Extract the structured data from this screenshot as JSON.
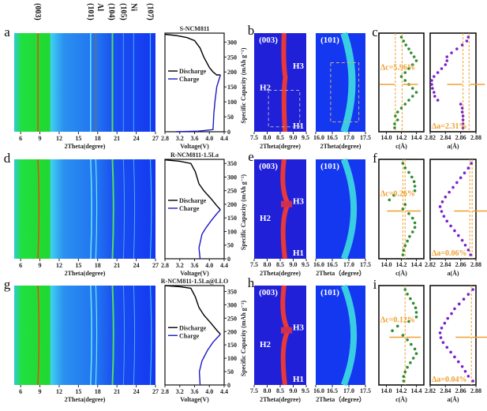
{
  "chart_data": {
    "type": "heatmap",
    "colors": {
      "discharge": "#000000",
      "charge": "#1a1ac8",
      "c_points": "#2e8b2e",
      "a_points": "#7a22c8",
      "guide": "#f0a030",
      "heat_low": "#1a3cf0",
      "heat_high": "#20e020",
      "peak_003": "#e05010"
    },
    "peak_labels": [
      {
        "text": "(003)",
        "two_theta": 8.7
      },
      {
        "text": "(101)",
        "two_theta": 16.9
      },
      {
        "text": "Al",
        "two_theta": 17.7
      },
      {
        "text": "(104)",
        "two_theta": 20.2
      },
      {
        "text": "(105)",
        "two_theta": 22.0
      },
      {
        "text": "Ni",
        "two_theta": 23.6
      },
      {
        "text": "(107)",
        "two_theta": 26.2
      }
    ],
    "rows": [
      {
        "xrd": {
          "label": "a",
          "xlabel": "2Theta(degree)",
          "xticks": [
            6,
            9,
            12,
            15,
            18,
            21,
            24,
            27
          ],
          "xlim": [
            5,
            27
          ]
        },
        "voltage": {
          "title": "S-NCM811",
          "xlabel": "Voltage(V)",
          "ylabel": "Specific Capacity (mAh g⁻¹)",
          "xticks": [
            "2.8",
            "3.2",
            "3.6",
            "4.0",
            "4.4"
          ],
          "xlim": [
            2.8,
            4.4
          ],
          "yticks": [
            0,
            50,
            100,
            150,
            200,
            250,
            300
          ],
          "ylim": [
            0,
            330
          ],
          "legend": [
            "Discharge",
            "Charge"
          ],
          "discharge": [
            [
              4.3,
              190
            ],
            [
              4.2,
              190
            ],
            [
              4.1,
              200
            ],
            [
              4.0,
              215
            ],
            [
              3.85,
              250
            ],
            [
              3.75,
              280
            ],
            [
              3.6,
              305
            ],
            [
              3.4,
              315
            ],
            [
              3.1,
              322
            ],
            [
              2.8,
              326
            ]
          ],
          "charge": [
            [
              3.1,
              0
            ],
            [
              3.7,
              2
            ],
            [
              4.1,
              7
            ],
            [
              4.12,
              60
            ],
            [
              4.15,
              100
            ],
            [
              4.2,
              150
            ],
            [
              4.3,
              190
            ]
          ]
        },
        "zoom": {
          "label": "b",
          "panels": [
            {
              "title": "(003)",
              "xlabel": "2Theta(degree)",
              "xticks": [
                "7.5",
                "8.0",
                "8.5",
                "9.0",
                "9.5"
              ],
              "xlim": [
                7.5,
                9.5
              ],
              "phases": [
                "H1",
                "H2",
                "H3"
              ]
            },
            {
              "title": "(101)",
              "xlabel": "2Theta(degree)",
              "xticks": [
                "16.0",
                "16.5",
                "17.0",
                "17.5"
              ],
              "xlim": [
                16.0,
                17.5
              ]
            }
          ]
        },
        "lattice": {
          "label": "c",
          "c": {
            "xlabel": "c(Å)",
            "xticks": [
              "14.0",
              "14.2",
              "14.4"
            ],
            "xlim": [
              13.9,
              14.5
            ],
            "delta": "Δc=5.96%",
            "guides": [
              14.12,
              14.21
            ],
            "values": [
              14.2,
              14.23,
              14.26,
              14.3,
              14.33,
              14.37,
              14.4,
              14.35,
              14.3,
              14.25,
              14.2,
              14.25,
              14.3,
              14.35,
              14.4,
              14.35,
              14.3,
              14.25,
              14.2,
              14.15,
              14.12,
              14.15,
              14.11,
              14.11
            ]
          },
          "a": {
            "xlabel": "a(Å)",
            "xticks": [
              "2.82",
              "2.84",
              "2.86",
              "2.88"
            ],
            "xlim": [
              2.82,
              2.88
            ],
            "delta": "Δa=2.31%",
            "guides": [
              2.863,
              2.871
            ],
            "values": [
              2.87,
              2.868,
              2.862,
              2.855,
              2.848,
              2.842,
              2.842,
              2.84,
              2.835,
              2.83,
              2.825,
              2.822,
              2.822,
              2.823,
              2.825,
              2.826,
              2.83,
              2.86,
              2.862,
              2.862,
              2.863,
              2.863,
              2.863,
              2.863
            ]
          }
        }
      },
      {
        "xrd": {
          "label": "d",
          "xlabel": "2Theta(degree)",
          "xticks": [
            6,
            9,
            12,
            15,
            18,
            21,
            24,
            27
          ],
          "xlim": [
            5,
            27
          ]
        },
        "voltage": {
          "title": "R-NCM811-1.5La",
          "xlabel": "Voltage(V)",
          "ylabel": "Specific Capacity (mAh g⁻¹)",
          "xticks": [
            "2.8",
            "3.2",
            "3.6",
            "4.0",
            "4.4"
          ],
          "xlim": [
            2.8,
            4.4
          ],
          "yticks": [
            0,
            50,
            100,
            150,
            200,
            250,
            300,
            350
          ],
          "ylim": [
            0,
            365
          ],
          "legend": [
            "Discharge",
            "Charge"
          ],
          "discharge": [
            [
              4.3,
              180
            ],
            [
              4.2,
              195
            ],
            [
              4.05,
              220
            ],
            [
              3.85,
              250
            ],
            [
              3.72,
              275
            ],
            [
              3.62,
              320
            ],
            [
              3.5,
              350
            ],
            [
              3.2,
              358
            ],
            [
              2.8,
              363
            ]
          ],
          "charge": [
            [
              3.75,
              0
            ],
            [
              3.72,
              40
            ],
            [
              3.8,
              90
            ],
            [
              3.9,
              112
            ],
            [
              4.05,
              140
            ],
            [
              4.2,
              165
            ],
            [
              4.3,
              180
            ]
          ]
        },
        "zoom": {
          "label": "e",
          "panels": [
            {
              "title": "(003)",
              "xlabel": "2Theta(degree)",
              "xticks": [
                "7.5",
                "8.0",
                "8.5",
                "9.0",
                "9.5"
              ],
              "xlim": [
                7.5,
                9.5
              ],
              "phases": [
                "H1",
                "H2",
                "H3"
              ]
            },
            {
              "title": "(101)",
              "xlabel": "2Theta（degree）",
              "xticks": [
                "16.0",
                "16.5",
                "17.0",
                "17.5"
              ],
              "xlim": [
                16.0,
                17.5
              ]
            }
          ]
        },
        "lattice": {
          "label": "f",
          "c": {
            "xlabel": "c(Å)",
            "xticks": [
              "14.0",
              "14.2",
              "14.4"
            ],
            "xlim": [
              13.9,
              14.5
            ],
            "delta": "Δc=0.26%",
            "guides": [
              14.22,
              14.25
            ],
            "values": [
              14.22,
              14.25,
              14.3,
              14.34,
              14.37,
              14.38,
              14.38,
              14.1,
              14.04,
              14.25,
              14.22,
              14.3,
              14.35,
              14.38,
              14.38,
              14.35,
              14.31,
              14.28,
              14.25,
              14.23,
              14.22
            ]
          },
          "a": {
            "xlabel": "a(Å)",
            "xticks": [
              "2.82",
              "2.84",
              "2.86",
              "2.88"
            ],
            "xlim": [
              2.82,
              2.88
            ],
            "delta": "Δa=0.06%",
            "guides": [
              2.872,
              2.875
            ],
            "values": [
              2.874,
              2.87,
              2.865,
              2.86,
              2.855,
              2.85,
              2.845,
              2.84,
              2.836,
              2.833,
              2.835,
              2.838,
              2.842,
              2.847,
              2.852,
              2.857,
              2.862,
              2.866,
              2.87,
              2.873
            ]
          }
        }
      },
      {
        "xrd": {
          "label": "g",
          "xlabel": "2Theta(degree)",
          "xticks": [
            6,
            9,
            12,
            15,
            18,
            21,
            24,
            27
          ],
          "xlim": [
            5,
            27
          ]
        },
        "voltage": {
          "title": "R-NCM811-1.5La@LLO",
          "xlabel": "Voltage(V)",
          "ylabel": "Specific Capacity (mAh g⁻¹)",
          "xticks": [
            "2.8",
            "3.2",
            "3.6",
            "4.0",
            "4.4"
          ],
          "xlim": [
            2.8,
            4.4
          ],
          "yticks": [
            0,
            50,
            100,
            150,
            200,
            250,
            300,
            350
          ],
          "ylim": [
            0,
            372
          ],
          "legend": [
            "Discharge",
            "Charge"
          ],
          "discharge": [
            [
              4.3,
              190
            ],
            [
              4.2,
              205
            ],
            [
              4.05,
              230
            ],
            [
              3.85,
              262
            ],
            [
              3.72,
              290
            ],
            [
              3.62,
              330
            ],
            [
              3.5,
              362
            ],
            [
              3.2,
              368
            ],
            [
              2.8,
              372
            ]
          ],
          "charge": [
            [
              3.75,
              0
            ],
            [
              3.73,
              50
            ],
            [
              3.8,
              90
            ],
            [
              3.95,
              130
            ],
            [
              4.1,
              160
            ],
            [
              4.3,
              190
            ]
          ]
        },
        "zoom": {
          "label": "h",
          "panels": [
            {
              "title": "(003)",
              "xlabel": "2Theta(degree)",
              "xticks": [
                "7.5",
                "8.0",
                "8.5",
                "9.0",
                "9.5"
              ],
              "xlim": [
                7.5,
                9.5
              ],
              "phases": [
                "H1",
                "H2",
                "H3"
              ]
            },
            {
              "title": "(101)",
              "xlabel": "2Theta（degree）",
              "xticks": [
                "16.0",
                "16.5",
                "17.0",
                "17.5"
              ],
              "xlim": [
                16.0,
                17.5
              ]
            }
          ]
        },
        "lattice": {
          "label": "i",
          "c": {
            "xlabel": "c(Å)",
            "xticks": [
              "14.0",
              "14.2",
              "14.4"
            ],
            "xlim": [
              13.9,
              14.5
            ],
            "delta": "Δc=0.12%",
            "guides": [
              14.25
            ],
            "values": [
              14.25,
              14.28,
              14.32,
              14.36,
              14.39,
              14.4,
              14.4,
              14.3,
              14.15,
              14.08,
              14.22,
              14.28,
              14.33,
              14.38,
              14.4,
              14.36,
              14.32,
              14.28,
              14.25,
              14.23,
              14.23
            ]
          },
          "a": {
            "xlabel": "a(Å)",
            "xticks": [
              "2.82",
              "2.84",
              "2.86",
              "2.88"
            ],
            "xlim": [
              2.82,
              2.88
            ],
            "delta": "Δa=0.04%",
            "guides": [
              2.874
            ],
            "values": [
              2.876,
              2.87,
              2.864,
              2.858,
              2.852,
              2.848,
              2.843,
              2.839,
              2.835,
              2.833,
              2.834,
              2.837,
              2.842,
              2.847,
              2.852,
              2.857,
              2.862,
              2.866,
              2.87,
              2.876
            ]
          }
        }
      }
    ]
  }
}
